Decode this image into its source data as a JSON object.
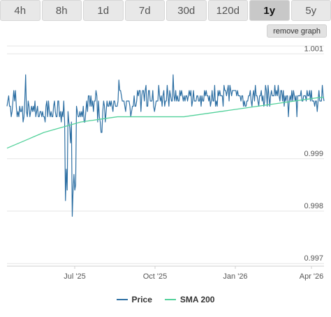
{
  "tabs": [
    {
      "label": "4h"
    },
    {
      "label": "8h"
    },
    {
      "label": "1d"
    },
    {
      "label": "7d"
    },
    {
      "label": "30d"
    },
    {
      "label": "120d"
    },
    {
      "label": "1y",
      "active": true
    },
    {
      "label": "5y"
    }
  ],
  "remove_graph_label": "remove graph",
  "colors": {
    "price": "#2d6fa3",
    "sma": "#52d19a",
    "grid": "#e6e6e6",
    "tab_bg": "#e8e8e8",
    "tab_active_bg": "#c8c8c8"
  },
  "chart_data": {
    "type": "line",
    "x_axis": {
      "tick_labels": [
        "Jul '25",
        "Oct '25",
        "Jan '26",
        "Apr '26"
      ]
    },
    "y_axis": {
      "range": [
        0.99695,
        1.00115
      ],
      "ticks": [
        0.997,
        0.998,
        0.999,
        1.001
      ],
      "tick_labels": [
        "0.997",
        "0.998",
        "0.999",
        "1.001"
      ]
    },
    "legend": [
      "Price",
      "SMA 200"
    ],
    "series": [
      {
        "name": "Price",
        "color": "#2d6fa3",
        "values": [
          1.0,
          1.0001,
          1.0002,
          1.0,
          1.0,
          0.9998,
          0.9999,
          1.0001,
          1.0003,
          1.0001,
          1.0003,
          1.0,
          0.9998,
          0.9999,
          0.9998,
          1.0,
          0.9999,
          0.9999,
          1.0,
          0.9997,
          0.9998,
          1.0001,
          1.0006,
          0.9999,
          0.9998,
          1.0001,
          1.0,
          0.9998,
          0.9999,
          1.0,
          0.9999,
          1.0,
          0.9999,
          1.0001,
          0.9998,
          0.9999,
          1.0,
          0.9998,
          0.9998,
          0.9999,
          0.9999,
          0.9998,
          0.9999,
          0.9998,
          0.9998,
          0.9997,
          1.0,
          1.0001,
          0.9998,
          1.0001,
          0.9999,
          0.9998,
          0.9999,
          0.9998,
          0.9998,
          1.0,
          1.0001,
          0.9999,
          0.9998,
          0.9998,
          1.0001,
          1.0001,
          0.9998,
          0.9999,
          0.9997,
          0.9999,
          0.9998,
          1.0001,
          0.9997,
          0.9982,
          0.9988,
          0.9984,
          0.9999,
          0.9997,
          0.9996,
          0.9993,
          0.9997,
          0.9979,
          0.9984,
          0.9987,
          0.9984,
          0.9985,
          1.0,
          0.9999,
          0.9998,
          0.9998,
          0.9999,
          0.9998,
          0.9999,
          0.9998,
          1.0,
          0.9997,
          0.9997,
          0.9999,
          1.0001,
          0.9999,
          1.0002,
          1.0002,
          1.0,
          1.0002,
          1.0,
          1.0001,
          0.9999,
          1.0001,
          1.0001,
          1.0003,
          1.0002,
          0.9997,
          1.0001,
          0.9998,
          0.9997,
          0.9995,
          0.9995,
          0.9999,
          1.0001,
          1.0,
          0.9997,
          0.9999,
          1.0001,
          1.0,
          1.0,
          1.0001,
          1.0,
          1.0001,
          1.0,
          0.9999,
          1.0001,
          1.0001,
          1.0,
          1.0,
          1.0,
          1.0001,
          1.0005,
          1.0003,
          1.0003,
          1.0002,
          1.0001,
          1.0001,
          1.0001,
          1.0,
          0.9999,
          1.0001,
          1.0001,
          1.0001,
          1.0001,
          1.0,
          0.9998,
          0.9999,
          1.0,
          1.0,
          1.0002,
          1.0,
          1.0,
          1.0001,
          1.0003,
          1.0002,
          1.0003,
          1.0003,
          0.9999,
          1.0002,
          1.0003,
          1.0003,
          1.0001,
          1.0003,
          1.0004,
          1.0,
          1.0,
          1.0003,
          1.0003,
          1.0001,
          1.0001,
          1.0001,
          1.0003,
          1.0,
          0.9999,
          1.0,
          1.0001,
          1.0001,
          1.0001,
          1.0004,
          1.0002,
          1.0001,
          1.0002,
          1.0,
          1.0002,
          1.0003,
          1.0,
          1.0001,
          1.0001,
          1.0004,
          1.0002,
          1.0,
          1.0003,
          1.0002,
          1.0001,
          1.0001,
          1.0006,
          1.0002,
          1.0001,
          1.0003,
          1.0001,
          1.0002,
          1.0001,
          1.0001,
          1.0003,
          1.0002,
          1.0003,
          1.0002,
          1.0001,
          1.0002,
          1.0001,
          1.0002,
          1.0002,
          1.0001,
          1.0002,
          1.0003,
          1.0002,
          1.0003,
          1.0,
          1.0001,
          1.0003,
          1.0001,
          1.0001,
          1.0001,
          1.0002,
          1.0002,
          1.0001,
          1.0001,
          1.0002,
          1.0,
          1.0002,
          1.0001,
          1.0001,
          1.0003,
          1.0002,
          1.0003,
          1.0002,
          1.0002,
          1.0001,
          1.0002,
          1.0,
          1.0001,
          1.0003,
          1.0001,
          1.0001,
          1.0004,
          1.0,
          1.0001,
          1.0,
          1.0003,
          1.0002,
          1.0003,
          1.0002,
          1.0002,
          1.0002,
          1.0,
          1.0004,
          1.0003,
          1.0003,
          1.0002,
          1.0003,
          1.0004,
          1.0001,
          1.0004,
          1.0003,
          1.0002,
          1.0003,
          1.0003,
          1.0003,
          1.0003,
          1.0003,
          1.0002,
          1.0003,
          1.0002,
          1.0002,
          1.0002,
          1.0001,
          1.0002,
          1.0002,
          1.0,
          1.0001,
          1.0,
          1.0,
          1.0001,
          1.0001,
          1.0002,
          1.0002,
          1.0003,
          1.0001,
          1.0,
          1.0002,
          1.0003,
          1.0001,
          1.0004,
          1.0002,
          1.0002,
          1.0001,
          1.0,
          1.0002,
          1.0002,
          1.0003,
          1.0001,
          1.0002,
          1.0,
          1.0001,
          1.0004,
          1.0003,
          1.0,
          1.0004,
          1.0002,
          1.0,
          1.0002,
          1.0003,
          1.0002,
          1.0002,
          1.0002,
          1.0004,
          1.0002,
          1.0003,
          1.0002,
          1.0004,
          1.0002,
          1.0001,
          1.0003,
          1.0003,
          1.0001,
          1.0003,
          1.0,
          1.0002,
          1.0001,
          1.0002,
          1.0002,
          0.9998,
          1.0001,
          1.0002,
          1.0001,
          1.0003,
          1.0001,
          1.0003,
          1.0002,
          1.0001,
          1.0002,
          0.9998,
          1.0002,
          1.0002,
          1.0002,
          1.0002,
          1.0003,
          1.0001,
          1.0001,
          1.0002,
          1.0002,
          1.0002,
          1.0001,
          1.0003,
          1.0002,
          1.0002,
          1.0003,
          1.0001,
          1.0003,
          1.0001,
          1.0001,
          1.0001,
          1.0,
          1.0001,
          1.0001,
          0.9999,
          1.0001,
          1.0003,
          1.0001,
          1.0001,
          1.0001,
          1.0004,
          1.0002,
          1.0001
        ]
      },
      {
        "name": "SMA 200",
        "color": "#52d19a",
        "values": [
          0.9992,
          0.99923,
          0.99926,
          0.99929,
          0.99932,
          0.99935,
          0.99938,
          0.99941,
          0.99944,
          0.99947,
          0.9995,
          0.99952,
          0.99954,
          0.99956,
          0.99958,
          0.9996,
          0.99962,
          0.99964,
          0.99966,
          0.99968,
          0.9997,
          0.99971,
          0.99972,
          0.99973,
          0.99974,
          0.99975,
          0.99976,
          0.99977,
          0.99978,
          0.99979,
          0.9998,
          0.9998,
          0.9998,
          0.9998,
          0.9998,
          0.9998,
          0.9998,
          0.9998,
          0.9998,
          0.9998,
          0.9998,
          0.9998,
          0.9998,
          0.9998,
          0.9998,
          0.9998,
          0.9998,
          0.9998,
          0.9998,
          0.99981,
          0.99982,
          0.99983,
          0.99984,
          0.99985,
          0.99986,
          0.99987,
          0.99988,
          0.99989,
          0.9999,
          0.99991,
          0.99992,
          0.99993,
          0.99994,
          0.99995,
          0.99996,
          0.99997,
          0.99998,
          0.99999,
          1.0,
          1.00001,
          1.00002,
          1.00003,
          1.00004,
          1.00005,
          1.00006,
          1.00007,
          1.00008,
          1.00009,
          1.0001,
          1.00011,
          1.00012,
          1.00013,
          1.00014,
          1.00015,
          1.00016,
          1.00017,
          1.00017
        ]
      }
    ]
  }
}
